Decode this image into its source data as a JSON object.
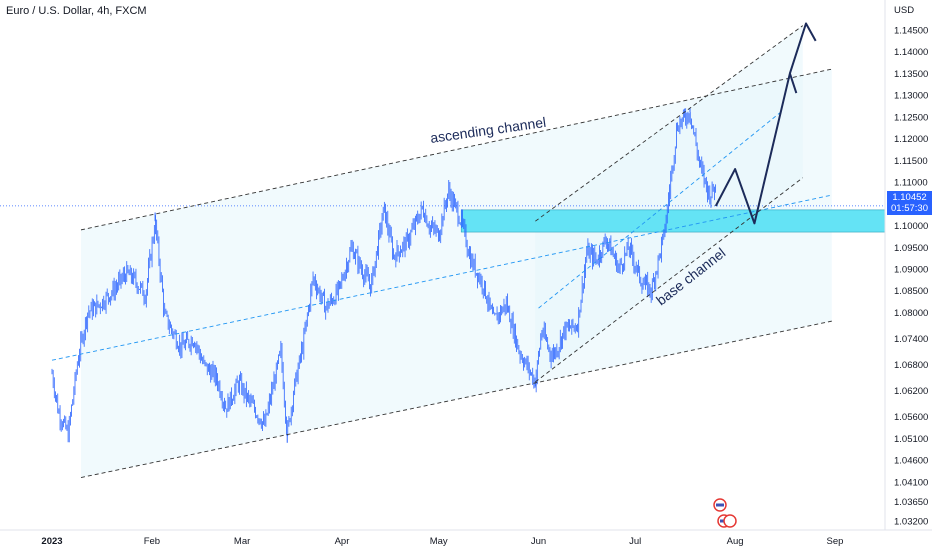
{
  "header": {
    "title": "Euro / U.S. Dollar, 4h, FXCM"
  },
  "colors": {
    "candle": "#2962ff",
    "channel_fill": "#e6f6fb",
    "zone": "#64e3f5",
    "forecast_arrow": "#1c2b5a",
    "dashed": "#333333",
    "mid_dashed": "#2196f3",
    "price_tag": "#2962ff"
  },
  "annotations": {
    "ascending": "ascending channel",
    "base": "base channel"
  },
  "current": {
    "price": "1.10452",
    "countdown": "01:57:30"
  },
  "chart_data": {
    "type": "candlestick",
    "unit": "USD",
    "ylim": [
      1.027,
      1.15
    ],
    "x_ticks": [
      "2023",
      "Feb",
      "Mar",
      "Apr",
      "May",
      "Jun",
      "Jul",
      "Aug",
      "Sep"
    ],
    "y_ticks": [
      "1.14500",
      "1.14000",
      "1.13500",
      "1.13000",
      "1.12500",
      "1.12000",
      "1.11500",
      "1.11000",
      "1.10000",
      "1.09500",
      "1.09000",
      "1.08500",
      "1.08000",
      "1.07400",
      "1.06800",
      "1.06200",
      "1.05600",
      "1.05100",
      "1.04600",
      "1.04100",
      "1.03650",
      "1.03200"
    ],
    "price_path": [
      [
        "2023-01-01",
        1.066
      ],
      [
        "2023-01-03",
        1.057
      ],
      [
        "2023-01-06",
        1.052
      ],
      [
        "2023-01-09",
        1.069
      ],
      [
        "2023-01-12",
        1.08
      ],
      [
        "2023-01-16",
        1.082
      ],
      [
        "2023-01-20",
        1.085
      ],
      [
        "2023-01-24",
        1.089
      ],
      [
        "2023-01-26",
        1.088
      ],
      [
        "2023-01-30",
        1.084
      ],
      [
        "2023-02-02",
        1.101
      ],
      [
        "2023-02-05",
        1.079
      ],
      [
        "2023-02-10",
        1.072
      ],
      [
        "2023-02-14",
        1.074
      ],
      [
        "2023-02-17",
        1.068
      ],
      [
        "2023-02-21",
        1.065
      ],
      [
        "2023-02-24",
        1.058
      ],
      [
        "2023-02-28",
        1.064
      ],
      [
        "2023-03-02",
        1.061
      ],
      [
        "2023-03-08",
        1.054
      ],
      [
        "2023-03-10",
        1.061
      ],
      [
        "2023-03-13",
        1.071
      ],
      [
        "2023-03-15",
        1.052
      ],
      [
        "2023-03-17",
        1.062
      ],
      [
        "2023-03-20",
        1.073
      ],
      [
        "2023-03-23",
        1.088
      ],
      [
        "2023-03-27",
        1.081
      ],
      [
        "2023-03-31",
        1.085
      ],
      [
        "2023-04-04",
        1.095
      ],
      [
        "2023-04-07",
        1.09
      ],
      [
        "2023-04-10",
        1.086
      ],
      [
        "2023-04-14",
        1.104
      ],
      [
        "2023-04-17",
        1.093
      ],
      [
        "2023-04-21",
        1.096
      ],
      [
        "2023-04-26",
        1.104
      ],
      [
        "2023-04-28",
        1.1
      ],
      [
        "2023-05-01",
        1.098
      ],
      [
        "2023-05-04",
        1.108
      ],
      [
        "2023-05-08",
        1.101
      ],
      [
        "2023-05-11",
        1.092
      ],
      [
        "2023-05-15",
        1.086
      ],
      [
        "2023-05-18",
        1.078
      ],
      [
        "2023-05-22",
        1.082
      ],
      [
        "2023-05-26",
        1.071
      ],
      [
        "2023-05-31",
        1.064
      ],
      [
        "2023-06-02",
        1.076
      ],
      [
        "2023-06-05",
        1.07
      ],
      [
        "2023-06-07",
        1.072
      ],
      [
        "2023-06-09",
        1.076
      ],
      [
        "2023-06-13",
        1.077
      ],
      [
        "2023-06-16",
        1.094
      ],
      [
        "2023-06-19",
        1.092
      ],
      [
        "2023-06-22",
        1.097
      ],
      [
        "2023-06-26",
        1.09
      ],
      [
        "2023-06-29",
        1.095
      ],
      [
        "2023-07-03",
        1.087
      ],
      [
        "2023-07-06",
        1.085
      ],
      [
        "2023-07-10",
        1.098
      ],
      [
        "2023-07-14",
        1.123
      ],
      [
        "2023-07-18",
        1.126
      ],
      [
        "2023-07-21",
        1.114
      ],
      [
        "2023-07-24",
        1.107
      ],
      [
        "2023-07-26",
        1.109
      ]
    ],
    "forecast_path": [
      [
        "2023-07-26",
        1.1045
      ],
      [
        "2023-08-01",
        1.113
      ],
      [
        "2023-08-07",
        1.1005
      ],
      [
        "2023-08-18",
        1.135
      ],
      [
        "2023-08-20",
        1.1305
      ]
    ],
    "forecast_path_2": [
      [
        "2023-08-18",
        1.135
      ],
      [
        "2023-08-23",
        1.1465
      ],
      [
        "2023-08-26",
        1.1425
      ]
    ],
    "zone": {
      "from": "2023-05-08",
      "to_edge": true,
      "top": 1.1036,
      "bottom": 1.0985
    },
    "channels": {
      "ascending_upper": [
        [
          "2023-01-10",
          1.099
        ],
        [
          "2023-08-31",
          1.136
        ]
      ],
      "ascending_lower": [
        [
          "2023-01-10",
          1.042
        ],
        [
          "2023-08-31",
          1.078
        ]
      ],
      "ascending_mid": [
        [
          "2023-01-01",
          1.069
        ],
        [
          "2023-08-31",
          1.107
        ]
      ],
      "base_upper": [
        [
          "2023-05-31",
          1.101
        ],
        [
          "2023-08-22",
          1.146
        ]
      ],
      "base_lower": [
        [
          "2023-05-31",
          1.064
        ],
        [
          "2023-08-22",
          1.111
        ]
      ],
      "base_mid": [
        [
          "2023-06-01",
          1.081
        ],
        [
          "2023-08-15",
          1.126
        ]
      ]
    }
  }
}
